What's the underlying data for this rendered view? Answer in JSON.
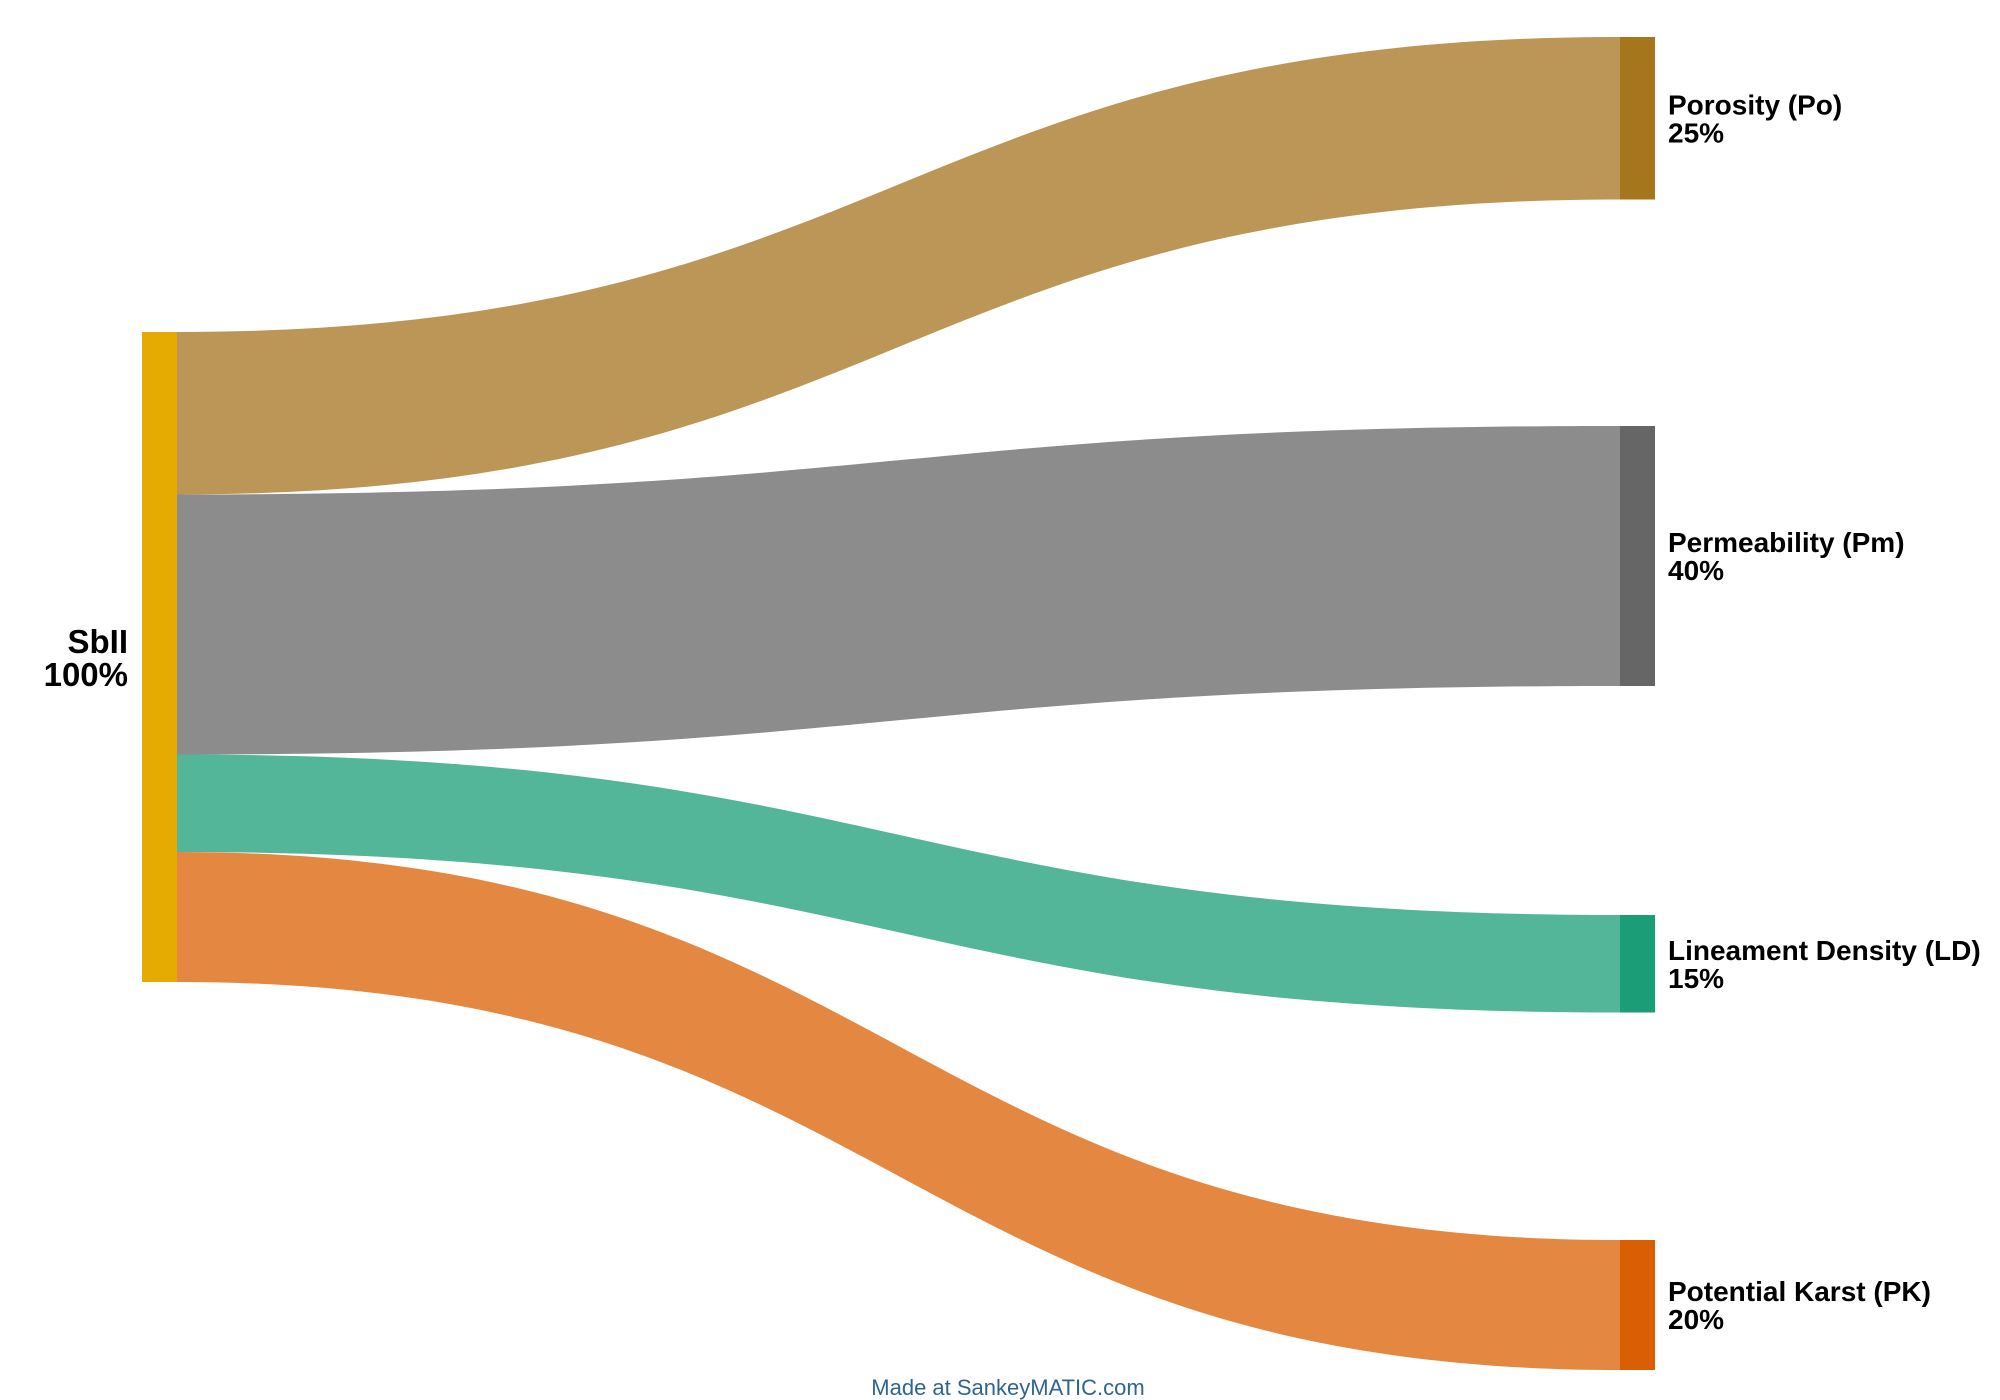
{
  "source": {
    "name": "SbII",
    "value_label": "100%",
    "color": "#e5ab02"
  },
  "targets": [
    {
      "name": "Porosity (Po)",
      "value_label": "25%",
      "value": 25,
      "node_color": "#a6761d",
      "flow_color": "#bb9657"
    },
    {
      "name": "Permeability (Pm)",
      "value_label": "40%",
      "value": 40,
      "node_color": "#666666",
      "flow_color": "#8c8c8c"
    },
    {
      "name": "Lineament Density (LD)",
      "value_label": "15%",
      "value": 15,
      "node_color": "#1b9e77",
      "flow_color": "#53b698"
    },
    {
      "name": "Potential Karst (PK)",
      "value_label": "20%",
      "value": 20,
      "node_color": "#d95f02",
      "flow_color": "#e48741"
    }
  ],
  "credit": {
    "text": "Made at SankeyMATIC.com",
    "color": "#2f6591"
  }
}
